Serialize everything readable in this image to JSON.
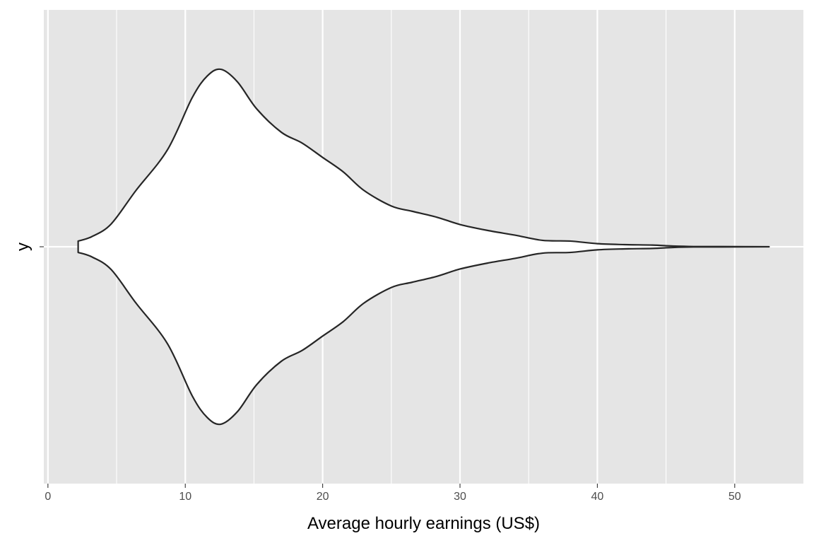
{
  "chart_data": {
    "type": "violin",
    "orientation": "horizontal",
    "xlabel": "Average hourly earnings (US$)",
    "ylabel": "y",
    "category": "",
    "xlim": [
      -0.3,
      55.0
    ],
    "x_ticks": [
      0,
      10,
      20,
      30,
      40,
      50
    ],
    "x_minor": [
      5,
      15,
      25,
      35,
      45
    ],
    "grid": true,
    "background": "#e5e5e5",
    "grid_color": "#ffffff",
    "violin_fill": "#ffffff",
    "violin_stroke": "#262626",
    "density": {
      "x": [
        2.2,
        3.2,
        4.6,
        6.4,
        8.7,
        10.5,
        11.6,
        12.6,
        13.8,
        15.2,
        17.0,
        18.5,
        20.0,
        21.5,
        23.0,
        25.0,
        26.5,
        28.3,
        30.0,
        32.0,
        34.0,
        36.0,
        38.0,
        40.0,
        42.0,
        44.0,
        45.5,
        47.0,
        49.0,
        52.5
      ],
      "width": [
        0.024,
        0.043,
        0.096,
        0.237,
        0.409,
        0.629,
        0.721,
        0.749,
        0.696,
        0.582,
        0.483,
        0.438,
        0.377,
        0.316,
        0.238,
        0.172,
        0.15,
        0.125,
        0.094,
        0.069,
        0.049,
        0.027,
        0.024,
        0.013,
        0.009,
        0.007,
        0.003,
        0.001,
        0.001,
        0.0
      ]
    }
  }
}
